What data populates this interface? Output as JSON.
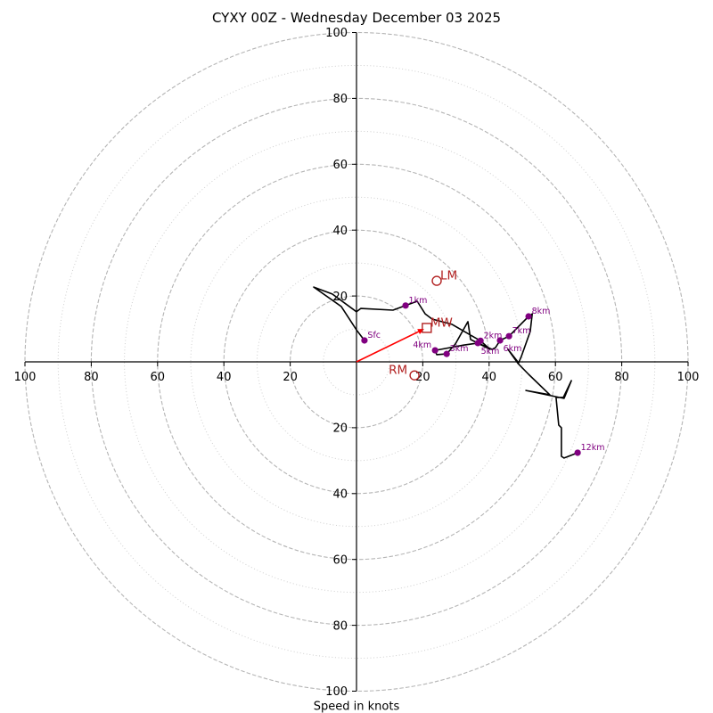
{
  "chart_data": {
    "type": "line",
    "subtype": "hodograph",
    "title": "CYXY 00Z - Wednesday December 03 2025",
    "xlabel": "Speed in knots",
    "ylabel": "",
    "range": [
      -100,
      100
    ],
    "units": "knots",
    "grid": true,
    "major_rings": [
      20,
      40,
      60,
      80,
      100
    ],
    "minor_rings": [
      10,
      30,
      50,
      70,
      90
    ],
    "x_ticks": [
      {
        "value": -100,
        "label": "100"
      },
      {
        "value": -80,
        "label": "80"
      },
      {
        "value": -60,
        "label": "60"
      },
      {
        "value": -40,
        "label": "40"
      },
      {
        "value": -20,
        "label": "20"
      },
      {
        "value": 20,
        "label": "20"
      },
      {
        "value": 40,
        "label": "40"
      },
      {
        "value": 60,
        "label": "60"
      },
      {
        "value": 80,
        "label": "80"
      },
      {
        "value": 100,
        "label": "100"
      }
    ],
    "y_ticks": [
      {
        "value": 100,
        "label": "100"
      },
      {
        "value": 80,
        "label": "80"
      },
      {
        "value": 60,
        "label": "60"
      },
      {
        "value": 40,
        "label": "40"
      },
      {
        "value": 20,
        "label": "20"
      },
      {
        "value": -20,
        "label": "20"
      },
      {
        "value": -40,
        "label": "40"
      },
      {
        "value": -60,
        "label": "60"
      },
      {
        "value": -80,
        "label": "80"
      },
      {
        "value": -100,
        "label": "100"
      }
    ],
    "hodograph": [
      {
        "u": 2.4,
        "v": 6.5
      },
      {
        "u": 0.0,
        "v": 9.7
      },
      {
        "u": -4.6,
        "v": 16.8
      },
      {
        "u": -12.9,
        "v": 22.7
      },
      {
        "u": -7.3,
        "v": 20.6
      },
      {
        "u": 0.0,
        "v": 15.2
      },
      {
        "u": 1.3,
        "v": 16.2
      },
      {
        "u": 11.0,
        "v": 15.7
      },
      {
        "u": 14.8,
        "v": 17.1
      },
      {
        "u": 18.3,
        "v": 18.4
      },
      {
        "u": 20.7,
        "v": 14.6
      },
      {
        "u": 22.8,
        "v": 13.0
      },
      {
        "u": 28.8,
        "v": 11.4
      },
      {
        "u": 37.4,
        "v": 6.4
      },
      {
        "u": 40.3,
        "v": 3.8
      },
      {
        "u": 34.4,
        "v": 6.8
      },
      {
        "u": 33.6,
        "v": 12.2
      },
      {
        "u": 29.8,
        "v": 5.4
      },
      {
        "u": 27.2,
        "v": 2.4
      },
      {
        "u": 24.2,
        "v": 2.2
      },
      {
        "u": 23.7,
        "v": 3.5
      },
      {
        "u": 32.3,
        "v": 5.1
      },
      {
        "u": 36.6,
        "v": 5.7
      },
      {
        "u": 40.9,
        "v": 3.8
      },
      {
        "u": 41.9,
        "v": 4.3
      },
      {
        "u": 43.3,
        "v": 6.5
      },
      {
        "u": 46.0,
        "v": 7.8
      },
      {
        "u": 51.9,
        "v": 13.8
      },
      {
        "u": 53.0,
        "v": 14.6
      },
      {
        "u": 52.4,
        "v": 9.2
      },
      {
        "u": 49.7,
        "v": 1.6
      },
      {
        "u": 48.9,
        "v": -0.3
      },
      {
        "u": 45.7,
        "v": 3.8
      },
      {
        "u": 48.7,
        "v": -0.5
      },
      {
        "u": 51.9,
        "v": -3.8
      },
      {
        "u": 58.3,
        "v": -10.0
      },
      {
        "u": 51.1,
        "v": -8.7
      },
      {
        "u": 62.6,
        "v": -11.1
      },
      {
        "u": 64.8,
        "v": -5.7
      },
      {
        "u": 62.4,
        "v": -10.8
      },
      {
        "u": 60.2,
        "v": -10.8
      },
      {
        "u": 61.0,
        "v": -19.2
      },
      {
        "u": 61.8,
        "v": -20.0
      },
      {
        "u": 61.8,
        "v": -28.7
      },
      {
        "u": 62.6,
        "v": -29.2
      },
      {
        "u": 66.7,
        "v": -27.6
      }
    ],
    "height_markers": [
      {
        "label": "Sfc",
        "u": 2.4,
        "v": 6.5
      },
      {
        "label": "1km",
        "u": 14.8,
        "v": 17.1
      },
      {
        "label": "2km",
        "u": 37.4,
        "v": 6.4
      },
      {
        "label": "3km",
        "u": 27.2,
        "v": 2.4
      },
      {
        "label": "4km",
        "u": 23.7,
        "v": 3.5
      },
      {
        "label": "5km",
        "u": 36.6,
        "v": 5.7
      },
      {
        "label": "6km",
        "u": 43.3,
        "v": 6.5
      },
      {
        "label": "7km",
        "u": 46.0,
        "v": 7.8
      },
      {
        "label": "8km",
        "u": 51.9,
        "v": 13.8
      },
      {
        "label": "12km",
        "u": 66.7,
        "v": -27.6
      }
    ],
    "storm_motion": [
      {
        "label": "LM",
        "u": 24.2,
        "v": 24.6,
        "marker": "circle"
      },
      {
        "label": "MW",
        "u": 21.2,
        "v": 10.3,
        "marker": "square"
      },
      {
        "label": "RM",
        "u": 17.5,
        "v": -4.1,
        "marker": "circle"
      }
    ],
    "vector": {
      "u": 20.4,
      "v": 10.0,
      "target": "MW"
    },
    "colors": {
      "trace": "#000000",
      "height_marker": "#800080",
      "storm_motion": "#b22222",
      "vector": "#ff0000",
      "major_ring": "#b5b5b5",
      "minor_ring": "#cfcfcf",
      "axis": "#000000"
    }
  }
}
